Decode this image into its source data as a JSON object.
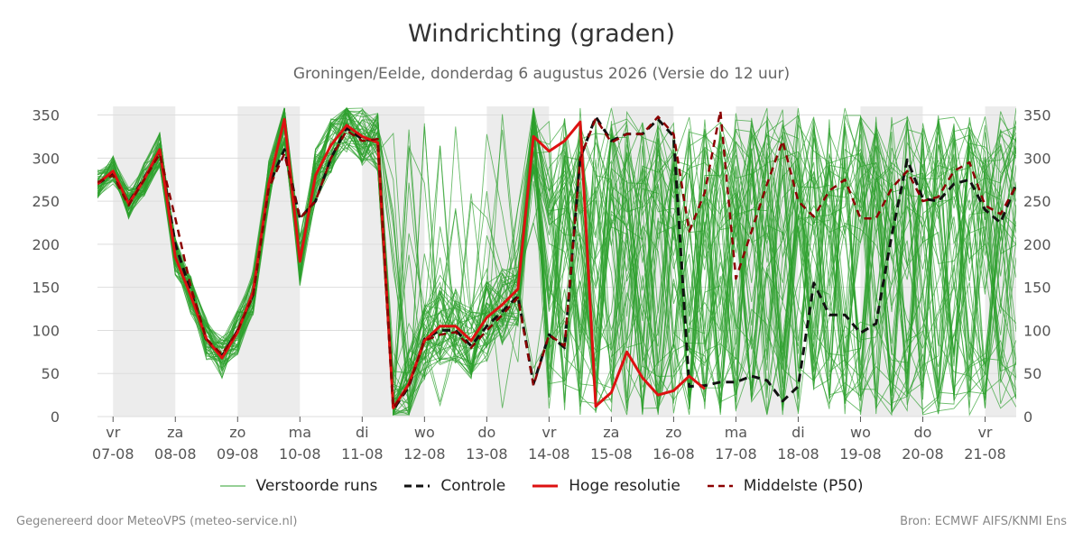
{
  "header": {
    "title": "Windrichting (graden)",
    "subtitle": "Groningen/Eelde, donderdag  6 augustus 2026 (Versie do 12 uur)"
  },
  "footer": {
    "left": "Gegenereerd door MeteoVPS (meteo-service.nl)",
    "right": "Bron: ECMWF AIFS/KNMI Ens"
  },
  "legend": {
    "perturbed": "Verstoorde runs",
    "control": "Controle",
    "highres": "Hoge resolutie",
    "median": "Middelste (P50)"
  },
  "colors": {
    "perturbed": "#2ca02c",
    "control": "#111111",
    "highres": "#dd1111",
    "median": "#8b0000",
    "night_band": "#ececec",
    "grid": "#dddddd"
  },
  "chart_data": {
    "type": "line",
    "x_unit": "days from vr 07-08 00:00",
    "xlim": [
      -0.25,
      14.5
    ],
    "ylim": [
      0,
      360
    ],
    "yticks": [
      0,
      50,
      100,
      150,
      200,
      250,
      300,
      350
    ],
    "x_ticks": [
      {
        "x": 0,
        "day": "vr",
        "date": "07-08"
      },
      {
        "x": 1,
        "day": "za",
        "date": "08-08"
      },
      {
        "x": 2,
        "day": "zo",
        "date": "09-08"
      },
      {
        "x": 3,
        "day": "ma",
        "date": "10-08"
      },
      {
        "x": 4,
        "day": "di",
        "date": "11-08"
      },
      {
        "x": 5,
        "day": "wo",
        "date": "12-08"
      },
      {
        "x": 6,
        "day": "do",
        "date": "13-08"
      },
      {
        "x": 7,
        "day": "vr",
        "date": "14-08"
      },
      {
        "x": 8,
        "day": "za",
        "date": "15-08"
      },
      {
        "x": 9,
        "day": "zo",
        "date": "16-08"
      },
      {
        "x": 10,
        "day": "ma",
        "date": "17-08"
      },
      {
        "x": 11,
        "day": "di",
        "date": "18-08"
      },
      {
        "x": 12,
        "day": "wo",
        "date": "19-08"
      },
      {
        "x": 13,
        "day": "do",
        "date": "20-08"
      },
      {
        "x": 14,
        "day": "vr",
        "date": "21-08"
      }
    ],
    "night_bands": [
      [
        0,
        1
      ],
      [
        2,
        3
      ],
      [
        4,
        5
      ],
      [
        6,
        7
      ],
      [
        8,
        9
      ],
      [
        10,
        11
      ],
      [
        12,
        13
      ],
      [
        14,
        14.5
      ]
    ],
    "series": [
      {
        "name": "Hoge resolutie",
        "style": "solid",
        "x": [
          -0.25,
          -0.0,
          0.25,
          0.5,
          0.75,
          1.0,
          1.25,
          1.5,
          1.75,
          2.0,
          2.25,
          2.5,
          2.75,
          3.0,
          3.25,
          3.5,
          3.75,
          4.0,
          4.25,
          4.5,
          4.75,
          5.0,
          5.25,
          5.5,
          5.75,
          6.0,
          6.25,
          6.5,
          6.75,
          7.0,
          7.25,
          7.5,
          7.75,
          8.0,
          8.25,
          8.5,
          8.75,
          9.0,
          9.25,
          9.5
        ],
        "values": [
          270,
          285,
          247,
          275,
          310,
          185,
          140,
          90,
          68,
          98,
          145,
          270,
          345,
          180,
          280,
          315,
          338,
          325,
          318,
          10,
          38,
          88,
          105,
          105,
          88,
          115,
          130,
          148,
          325,
          308,
          320,
          342,
          12,
          28,
          75,
          45,
          25,
          30,
          47,
          32
        ]
      },
      {
        "name": "Controle",
        "style": "dashed",
        "x": [
          -0.25,
          0.0,
          0.25,
          0.5,
          0.75,
          1.0,
          1.25,
          1.5,
          1.75,
          2.0,
          2.25,
          2.5,
          2.75,
          3.0,
          3.25,
          3.5,
          3.75,
          4.0,
          4.25,
          4.5,
          4.75,
          5.0,
          5.25,
          5.5,
          5.75,
          6.0,
          6.25,
          6.5,
          6.75,
          7.0,
          7.25,
          7.5,
          7.75,
          8.0,
          8.25,
          8.5,
          8.75,
          9.0,
          9.25,
          9.5,
          9.75,
          10.0,
          10.25,
          10.5,
          10.75,
          11.0,
          11.25,
          11.5,
          11.75,
          12.0,
          12.25,
          12.5,
          12.75,
          13.0,
          13.25,
          13.5,
          13.75,
          14.0,
          14.25,
          14.5
        ],
        "values": [
          270,
          282,
          248,
          277,
          307,
          200,
          145,
          88,
          70,
          100,
          142,
          268,
          310,
          230,
          250,
          300,
          335,
          322,
          320,
          8,
          35,
          90,
          100,
          100,
          82,
          105,
          122,
          140,
          38,
          95,
          80,
          300,
          348,
          320,
          328,
          328,
          345,
          325,
          35,
          36,
          40,
          40,
          47,
          42,
          18,
          35,
          155,
          118,
          118,
          97,
          108,
          210,
          298,
          253,
          250,
          270,
          275,
          240,
          225,
          270
        ]
      },
      {
        "name": "Middelste (P50)",
        "style": "dashed",
        "x": [
          -0.25,
          0.0,
          0.25,
          0.5,
          0.75,
          1.0,
          1.25,
          1.5,
          1.75,
          2.0,
          2.25,
          2.5,
          2.75,
          3.0,
          3.25,
          3.5,
          3.75,
          4.0,
          4.25,
          4.5,
          4.75,
          5.0,
          5.25,
          5.5,
          5.75,
          6.0,
          6.25,
          6.5,
          6.75,
          7.0,
          7.25,
          7.5,
          7.75,
          8.0,
          8.25,
          8.5,
          8.75,
          9.0,
          9.25,
          9.5,
          9.75,
          10.0,
          10.25,
          10.5,
          10.75,
          11.0,
          11.25,
          11.5,
          11.75,
          12.0,
          12.25,
          12.5,
          12.75,
          13.0,
          13.25,
          13.5,
          13.75,
          14.0,
          14.25,
          14.5
        ],
        "values": [
          272,
          280,
          245,
          275,
          305,
          230,
          150,
          90,
          72,
          100,
          140,
          265,
          305,
          230,
          250,
          300,
          332,
          320,
          322,
          10,
          36,
          88,
          95,
          98,
          80,
          100,
          118,
          138,
          36,
          95,
          82,
          300,
          346,
          318,
          328,
          328,
          348,
          328,
          215,
          260,
          355,
          160,
          215,
          270,
          320,
          250,
          232,
          262,
          275,
          230,
          230,
          265,
          285,
          250,
          255,
          285,
          295,
          245,
          235,
          268
        ]
      }
    ]
  }
}
